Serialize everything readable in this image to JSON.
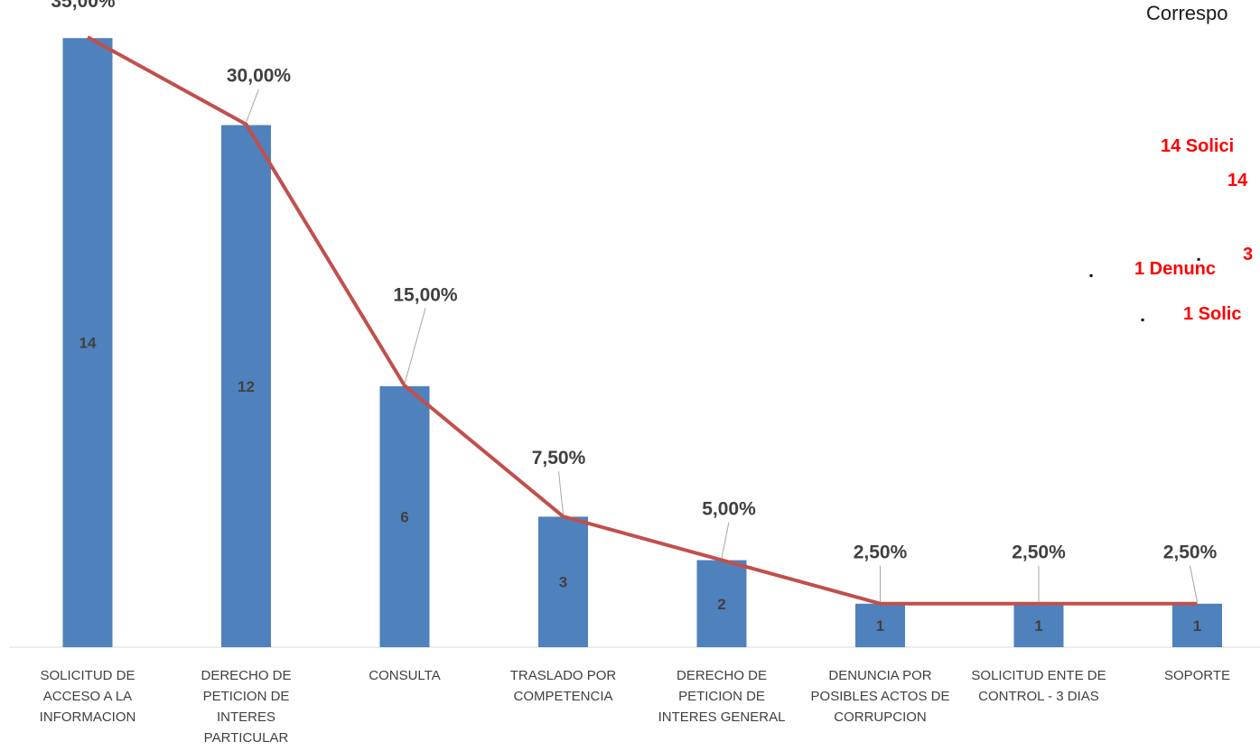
{
  "chart_data": {
    "type": "bar",
    "categories": [
      [
        "SOLICITUD DE",
        "ACCESO A LA",
        "INFORMACION"
      ],
      [
        "DERECHO DE",
        "PETICION DE",
        "INTERES",
        "PARTICULAR"
      ],
      [
        "CONSULTA"
      ],
      [
        "TRASLADO POR",
        "COMPETENCIA"
      ],
      [
        "DERECHO DE",
        "PETICION DE",
        "INTERES GENERAL"
      ],
      [
        "DENUNCIA POR",
        "POSIBLES ACTOS DE",
        "CORRUPCION"
      ],
      [
        "SOLICITUD ENTE DE",
        "CONTROL - 3 DIAS"
      ],
      [
        "SOPORTE"
      ]
    ],
    "values": [
      14,
      12,
      6,
      3,
      2,
      1,
      1,
      1
    ],
    "value_labels": [
      "14",
      "12",
      "6",
      "3",
      "2",
      "1",
      "1",
      "1"
    ],
    "line_values": [
      35.0,
      30.0,
      15.0,
      7.5,
      5.0,
      2.5,
      2.5,
      2.5
    ],
    "line_labels": [
      "35,00%",
      "30,00%",
      "15,00%",
      "7,50%",
      "5,00%",
      "2,50%",
      "2,50%",
      "2,50%"
    ],
    "ylim": [
      0,
      40
    ],
    "grid": false,
    "colors": {
      "bar": "#4f81bd",
      "line": "#c0504d",
      "label": "#404040",
      "leader": "#a6a6a6"
    }
  },
  "side_panel": {
    "title": "Correspo",
    "lines": [
      "14 Solici",
      "14",
      "3",
      "1 Denunc",
      "1 Solic"
    ],
    "bullet": "▪"
  }
}
